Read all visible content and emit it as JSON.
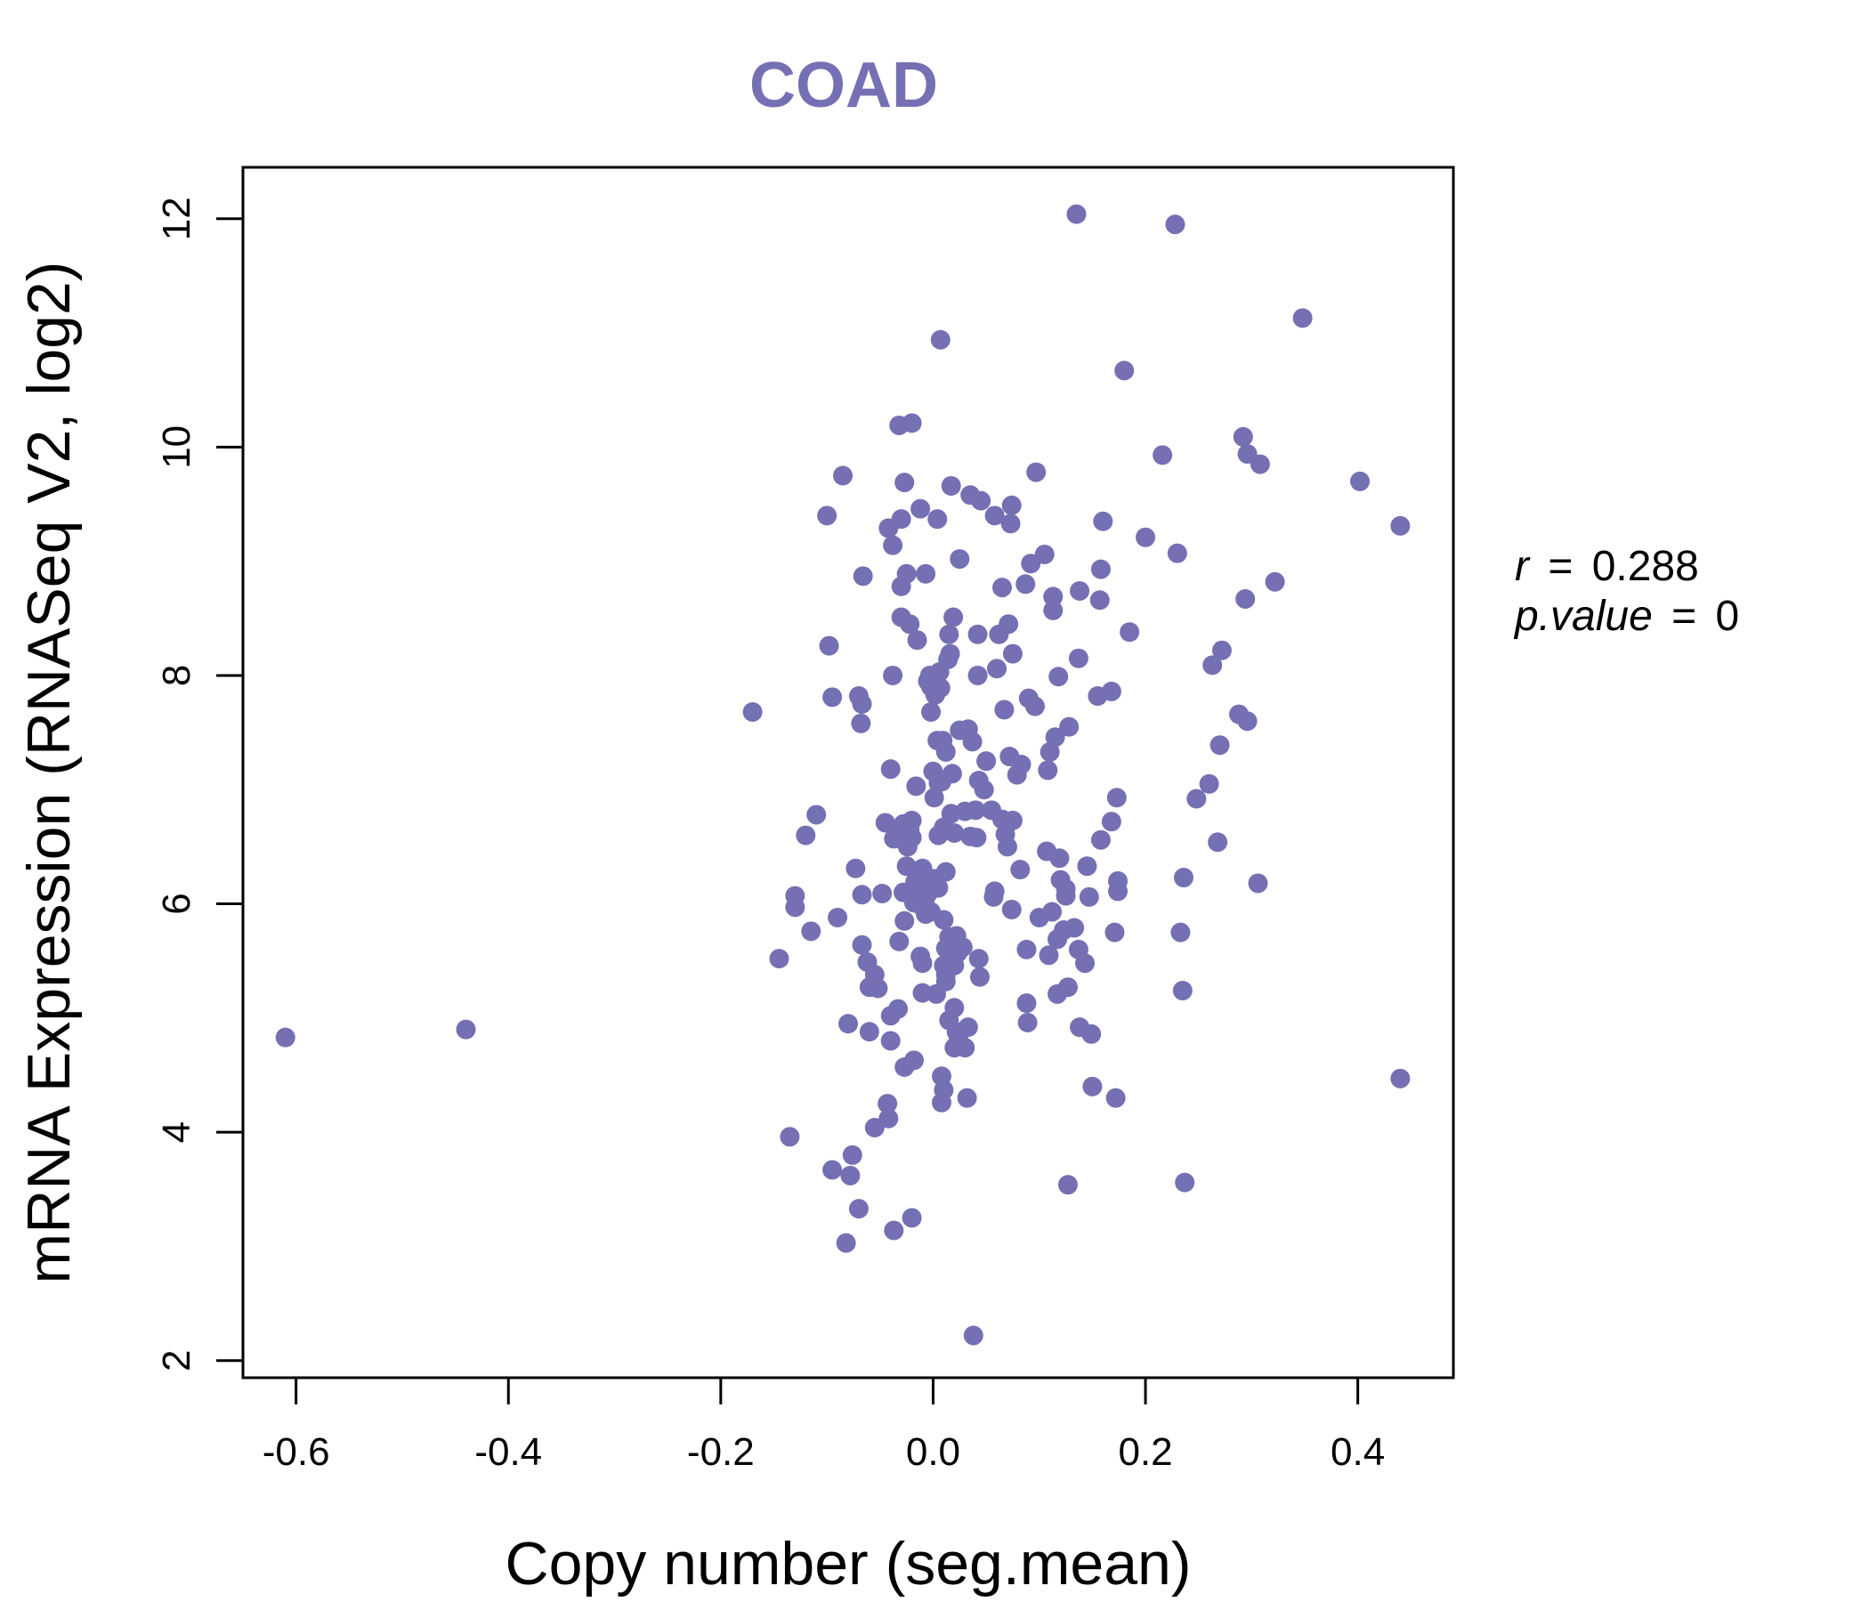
{
  "chart_data": {
    "type": "scatter",
    "title": "COAD",
    "xlabel": "Copy number (seg.mean)",
    "ylabel": "mRNA Expression (RNASeq V2, log2)",
    "xlim": [
      -0.65,
      0.49
    ],
    "ylim": [
      1.85,
      12.45
    ],
    "xticks": [
      -0.6,
      -0.4,
      -0.2,
      0.0,
      0.2,
      0.4
    ],
    "xtick_labels": [
      "-0.6",
      "-0.4",
      "-0.2",
      "0.0",
      "0.2",
      "0.4"
    ],
    "yticks": [
      2,
      4,
      6,
      8,
      10,
      12
    ],
    "ytick_labels": [
      "2",
      "4",
      "6",
      "8",
      "10",
      "12"
    ],
    "grid": false,
    "point_color": "#7570b3",
    "stats": {
      "r_symbol": "r",
      "r_value": "0.288",
      "p_symbol": "p.value",
      "p_value": "0",
      "equals": "="
    },
    "points": [
      [
        -0.61,
        4.83
      ],
      [
        -0.44,
        4.9
      ],
      [
        -0.17,
        7.68
      ],
      [
        -0.145,
        5.52
      ],
      [
        -0.135,
        3.96
      ],
      [
        -0.13,
        6.07
      ],
      [
        -0.13,
        5.97
      ],
      [
        -0.12,
        6.6
      ],
      [
        -0.115,
        5.76
      ],
      [
        -0.11,
        6.78
      ],
      [
        -0.1,
        9.4
      ],
      [
        -0.098,
        8.26
      ],
      [
        -0.095,
        7.81
      ],
      [
        -0.095,
        3.67
      ],
      [
        -0.09,
        5.88
      ],
      [
        -0.085,
        9.75
      ],
      [
        -0.082,
        3.03
      ],
      [
        -0.08,
        4.95
      ],
      [
        -0.078,
        3.62
      ],
      [
        -0.076,
        3.8
      ],
      [
        -0.073,
        6.31
      ],
      [
        -0.07,
        7.82
      ],
      [
        -0.07,
        3.33
      ],
      [
        -0.068,
        7.58
      ],
      [
        -0.067,
        7.75
      ],
      [
        -0.067,
        5.64
      ],
      [
        -0.067,
        6.08
      ],
      [
        -0.066,
        8.87
      ],
      [
        -0.062,
        5.49
      ],
      [
        -0.06,
        5.27
      ],
      [
        -0.06,
        4.88
      ],
      [
        -0.055,
        5.38
      ],
      [
        -0.055,
        4.04
      ],
      [
        -0.052,
        5.26
      ],
      [
        -0.048,
        6.09
      ],
      [
        -0.045,
        6.71
      ],
      [
        -0.043,
        4.25
      ],
      [
        -0.042,
        4.12
      ],
      [
        -0.042,
        9.29
      ],
      [
        -0.04,
        5.02
      ],
      [
        -0.04,
        7.18
      ],
      [
        -0.04,
        4.8
      ],
      [
        -0.038,
        8.0
      ],
      [
        -0.038,
        9.14
      ],
      [
        -0.037,
        6.57
      ],
      [
        -0.037,
        3.14
      ],
      [
        -0.033,
        5.08
      ],
      [
        -0.032,
        5.67
      ],
      [
        -0.032,
        6.63
      ],
      [
        -0.032,
        10.19
      ],
      [
        -0.03,
        8.78
      ],
      [
        -0.03,
        9.37
      ],
      [
        -0.03,
        8.51
      ],
      [
        -0.028,
        6.7
      ],
      [
        -0.028,
        6.1
      ],
      [
        -0.027,
        4.57
      ],
      [
        -0.027,
        5.85
      ],
      [
        -0.027,
        9.69
      ],
      [
        -0.025,
        8.89
      ],
      [
        -0.025,
        6.33
      ],
      [
        -0.024,
        6.5
      ],
      [
        -0.022,
        6.65
      ],
      [
        -0.022,
        8.45
      ],
      [
        -0.02,
        10.21
      ],
      [
        -0.02,
        6.58
      ],
      [
        -0.02,
        6.73
      ],
      [
        -0.02,
        3.25
      ],
      [
        -0.018,
        6.01
      ],
      [
        -0.018,
        4.63
      ],
      [
        -0.018,
        6.12
      ],
      [
        -0.017,
        6.19
      ],
      [
        -0.016,
        7.03
      ],
      [
        -0.015,
        6.07
      ],
      [
        -0.015,
        8.31
      ],
      [
        -0.014,
        6.1
      ],
      [
        -0.012,
        9.46
      ],
      [
        -0.012,
        5.54
      ],
      [
        -0.012,
        5.99
      ],
      [
        -0.012,
        6.21
      ],
      [
        -0.01,
        5.48
      ],
      [
        -0.01,
        6.31
      ],
      [
        -0.01,
        5.22
      ],
      [
        -0.008,
        6.02
      ],
      [
        -0.007,
        5.91
      ],
      [
        -0.007,
        8.89
      ],
      [
        -0.005,
        6.17
      ],
      [
        -0.005,
        7.95
      ],
      [
        -0.005,
        6.09
      ],
      [
        -0.003,
        8.0
      ],
      [
        -0.002,
        7.9
      ],
      [
        -0.002,
        5.93
      ],
      [
        -0.002,
        7.68
      ],
      [
        0.0,
        7.16
      ],
      [
        0.001,
        6.93
      ],
      [
        0.001,
        6.22
      ],
      [
        0.002,
        7.83
      ],
      [
        0.003,
        5.21
      ],
      [
        0.004,
        7.43
      ],
      [
        0.004,
        9.37
      ],
      [
        0.005,
        7.06
      ],
      [
        0.005,
        6.14
      ],
      [
        0.005,
        6.6
      ],
      [
        0.006,
        8.03
      ],
      [
        0.007,
        10.94
      ],
      [
        0.007,
        7.89
      ],
      [
        0.008,
        4.49
      ],
      [
        0.008,
        4.26
      ],
      [
        0.008,
        7.07
      ],
      [
        0.009,
        7.43
      ],
      [
        0.01,
        6.67
      ],
      [
        0.01,
        5.46
      ],
      [
        0.01,
        4.37
      ],
      [
        0.01,
        5.86
      ],
      [
        0.012,
        5.38
      ],
      [
        0.012,
        5.61
      ],
      [
        0.012,
        5.32
      ],
      [
        0.012,
        7.33
      ],
      [
        0.012,
        6.28
      ],
      [
        0.014,
        8.14
      ],
      [
        0.015,
        5.71
      ],
      [
        0.015,
        4.98
      ],
      [
        0.015,
        8.36
      ],
      [
        0.016,
        8.19
      ],
      [
        0.017,
        6.79
      ],
      [
        0.017,
        9.66
      ],
      [
        0.018,
        7.14
      ],
      [
        0.018,
        5.67
      ],
      [
        0.019,
        8.51
      ],
      [
        0.02,
        6.62
      ],
      [
        0.02,
        5.46
      ],
      [
        0.02,
        5.09
      ],
      [
        0.02,
        4.74
      ],
      [
        0.022,
        5.72
      ],
      [
        0.022,
        4.88
      ],
      [
        0.023,
        5.57
      ],
      [
        0.024,
        4.82
      ],
      [
        0.025,
        9.02
      ],
      [
        0.025,
        7.52
      ],
      [
        0.028,
        5.62
      ],
      [
        0.03,
        6.81
      ],
      [
        0.03,
        4.74
      ],
      [
        0.032,
        4.3
      ],
      [
        0.033,
        4.92
      ],
      [
        0.033,
        7.53
      ],
      [
        0.035,
        9.58
      ],
      [
        0.035,
        6.59
      ],
      [
        0.037,
        7.42
      ],
      [
        0.038,
        2.22
      ],
      [
        0.04,
        6.82
      ],
      [
        0.041,
        6.58
      ],
      [
        0.042,
        8.36
      ],
      [
        0.042,
        8.0
      ],
      [
        0.043,
        5.52
      ],
      [
        0.043,
        7.08
      ],
      [
        0.044,
        5.36
      ],
      [
        0.045,
        9.53
      ],
      [
        0.048,
        7.0
      ],
      [
        0.05,
        7.25
      ],
      [
        0.055,
        6.82
      ],
      [
        0.057,
        6.06
      ],
      [
        0.058,
        6.11
      ],
      [
        0.058,
        9.4
      ],
      [
        0.06,
        8.06
      ],
      [
        0.062,
        8.36
      ],
      [
        0.065,
        8.77
      ],
      [
        0.065,
        6.74
      ],
      [
        0.067,
        7.7
      ],
      [
        0.068,
        6.61
      ],
      [
        0.07,
        6.5
      ],
      [
        0.071,
        8.45
      ],
      [
        0.072,
        7.29
      ],
      [
        0.073,
        9.33
      ],
      [
        0.074,
        5.95
      ],
      [
        0.074,
        9.49
      ],
      [
        0.075,
        8.19
      ],
      [
        0.075,
        6.73
      ],
      [
        0.079,
        7.13
      ],
      [
        0.082,
        6.3
      ],
      [
        0.083,
        7.22
      ],
      [
        0.087,
        8.8
      ],
      [
        0.088,
        5.6
      ],
      [
        0.088,
        5.13
      ],
      [
        0.089,
        4.96
      ],
      [
        0.09,
        7.8
      ],
      [
        0.092,
        8.98
      ],
      [
        0.096,
        7.73
      ],
      [
        0.097,
        9.78
      ],
      [
        0.1,
        5.88
      ],
      [
        0.105,
        9.06
      ],
      [
        0.107,
        6.46
      ],
      [
        0.108,
        7.17
      ],
      [
        0.109,
        5.55
      ],
      [
        0.11,
        7.33
      ],
      [
        0.112,
        5.93
      ],
      [
        0.113,
        8.57
      ],
      [
        0.113,
        8.69
      ],
      [
        0.115,
        7.46
      ],
      [
        0.117,
        5.69
      ],
      [
        0.117,
        5.21
      ],
      [
        0.118,
        7.99
      ],
      [
        0.119,
        6.4
      ],
      [
        0.12,
        6.21
      ],
      [
        0.123,
        5.77
      ],
      [
        0.125,
        6.13
      ],
      [
        0.125,
        6.07
      ],
      [
        0.127,
        5.27
      ],
      [
        0.127,
        3.54
      ],
      [
        0.128,
        7.55
      ],
      [
        0.133,
        5.79
      ],
      [
        0.135,
        12.04
      ],
      [
        0.137,
        5.6
      ],
      [
        0.137,
        8.15
      ],
      [
        0.138,
        4.92
      ],
      [
        0.138,
        8.74
      ],
      [
        0.143,
        5.48
      ],
      [
        0.145,
        6.33
      ],
      [
        0.147,
        6.06
      ],
      [
        0.149,
        4.86
      ],
      [
        0.15,
        4.4
      ],
      [
        0.155,
        7.82
      ],
      [
        0.157,
        8.66
      ],
      [
        0.158,
        8.93
      ],
      [
        0.158,
        6.56
      ],
      [
        0.16,
        9.35
      ],
      [
        0.168,
        6.72
      ],
      [
        0.168,
        7.86
      ],
      [
        0.171,
        5.75
      ],
      [
        0.172,
        4.3
      ],
      [
        0.173,
        6.93
      ],
      [
        0.174,
        6.2
      ],
      [
        0.174,
        6.11
      ],
      [
        0.18,
        10.67
      ],
      [
        0.185,
        8.38
      ],
      [
        0.2,
        9.21
      ],
      [
        0.216,
        9.93
      ],
      [
        0.228,
        11.95
      ],
      [
        0.23,
        9.07
      ],
      [
        0.233,
        5.75
      ],
      [
        0.235,
        5.24
      ],
      [
        0.236,
        6.23
      ],
      [
        0.237,
        3.56
      ],
      [
        0.248,
        6.92
      ],
      [
        0.26,
        7.05
      ],
      [
        0.263,
        8.09
      ],
      [
        0.268,
        6.54
      ],
      [
        0.27,
        7.39
      ],
      [
        0.272,
        8.22
      ],
      [
        0.288,
        7.66
      ],
      [
        0.292,
        10.09
      ],
      [
        0.294,
        8.67
      ],
      [
        0.296,
        9.94
      ],
      [
        0.296,
        7.6
      ],
      [
        0.306,
        6.18
      ],
      [
        0.308,
        9.85
      ],
      [
        0.322,
        8.82
      ],
      [
        0.348,
        11.13
      ],
      [
        0.402,
        9.7
      ],
      [
        0.44,
        9.31
      ],
      [
        0.44,
        4.47
      ]
    ]
  }
}
